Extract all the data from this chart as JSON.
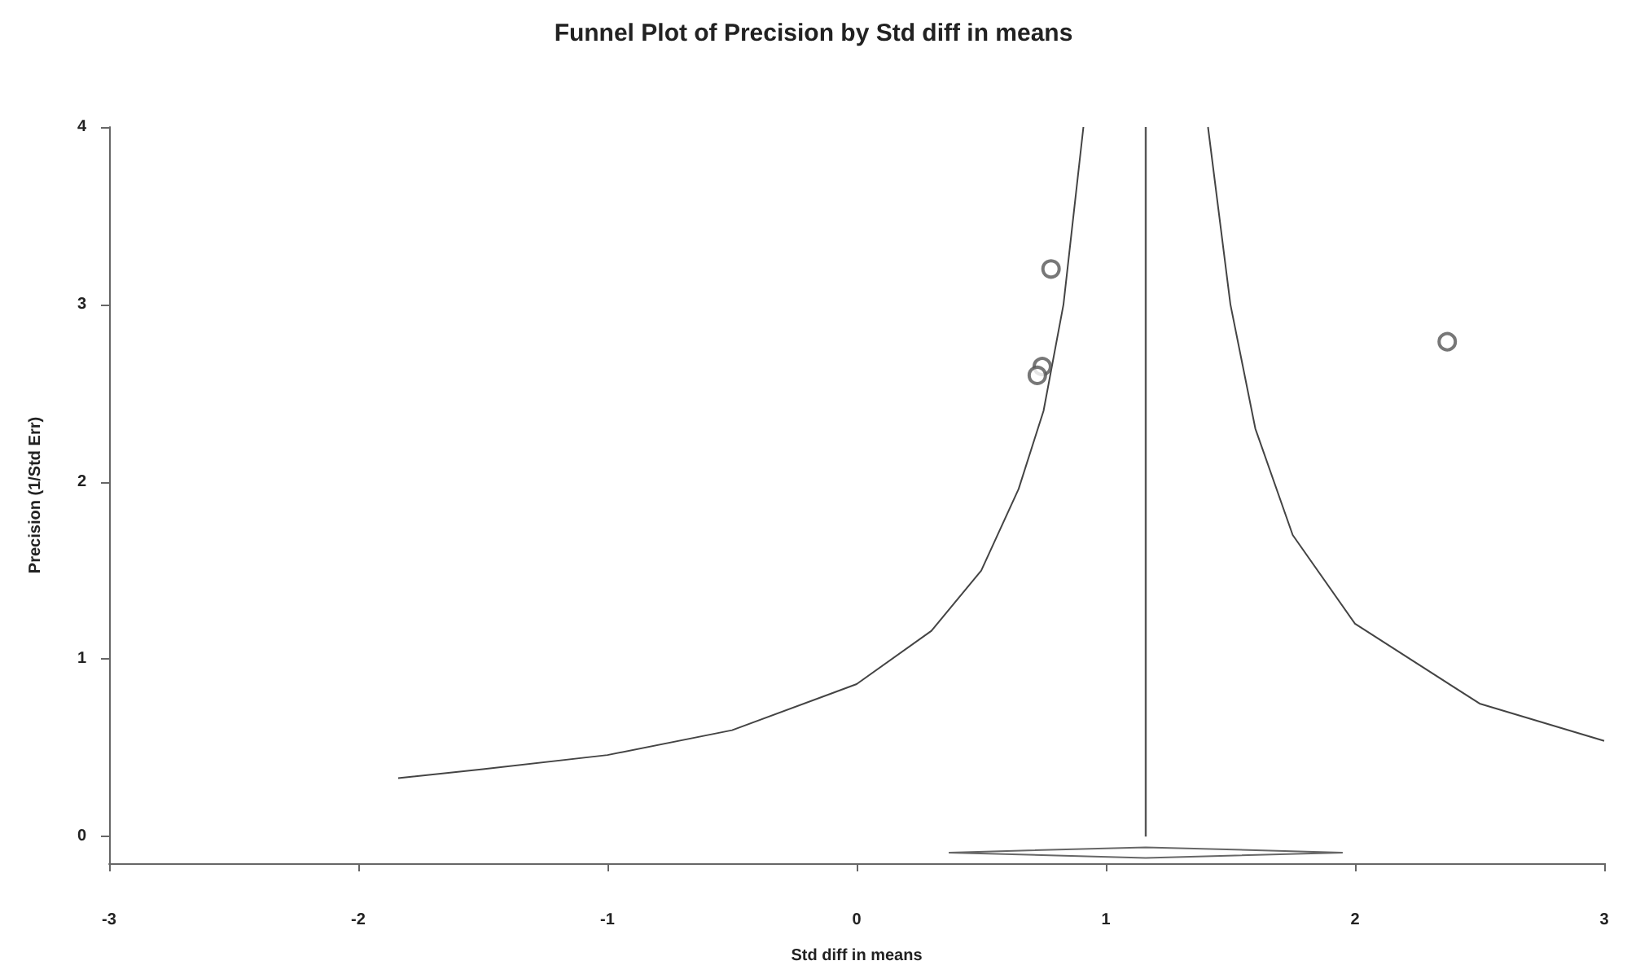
{
  "chart_data": {
    "type": "scatter",
    "title": "Funnel Plot of Precision by Std diff in means",
    "xlabel": "Std diff in means",
    "ylabel": "Precision (1/Std Err)",
    "xlim": [
      -3,
      3
    ],
    "xticks": [
      -3,
      -2,
      -1,
      0,
      1,
      2,
      3
    ],
    "ylim": [
      -0.15,
      4
    ],
    "yticks": [
      0,
      1,
      2,
      3,
      4
    ],
    "grid": false,
    "marker": "circle",
    "series": [
      {
        "color": "#555555",
        "x": [
          0.78,
          0.745,
          0.725,
          2.37
        ],
        "values": [
          3.2,
          2.65,
          2.6,
          2.79
        ]
      },
      {
        "type": "line",
        "color": "#444444",
        "marker": "none",
        "x": [
          -1.84,
          -1.5,
          -1.0,
          -0.5,
          0.0,
          0.3,
          0.5,
          0.65,
          0.75,
          0.83,
          0.91
        ],
        "values": [
          0.33,
          0.38,
          0.46,
          0.6,
          0.86,
          1.16,
          1.5,
          1.96,
          2.4,
          3.0,
          4.0
        ]
      },
      {
        "type": "line",
        "color": "#444444",
        "marker": "none",
        "x": [
          1.41,
          1.5,
          1.6,
          1.75,
          2.0,
          2.5,
          3.0
        ],
        "values": [
          4.0,
          3.0,
          2.3,
          1.7,
          1.2,
          0.75,
          0.54
        ]
      },
      {
        "type": "line",
        "color": "#666666",
        "marker": "none",
        "x": [
          0.37,
          1.16,
          1.95
        ],
        "values": [
          -0.09,
          -0.06,
          -0.09
        ]
      },
      {
        "type": "line",
        "color": "#666666",
        "marker": "none",
        "x": [
          0.37,
          1.16,
          1.95
        ],
        "values": [
          -0.09,
          -0.12,
          -0.09
        ]
      }
    ],
    "ref_lines": [
      {
        "axis": "x",
        "value": 1.16,
        "color": "#555555"
      }
    ]
  }
}
